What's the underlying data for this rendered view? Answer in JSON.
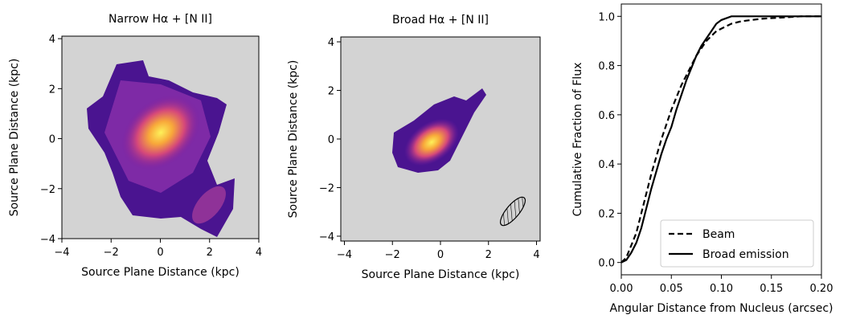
{
  "chart_data": [
    {
      "type": "image",
      "title": "Narrow Hα + [N II]",
      "xlabel": "Source Plane Distance (kpc)",
      "ylabel": "Source Plane Distance (kpc)",
      "xlim": [
        -4,
        4
      ],
      "ylim": [
        -4,
        4.1
      ],
      "xticks": [
        {
          "value": -4,
          "label": "−4"
        },
        {
          "value": -2,
          "label": "−2"
        },
        0,
        2,
        4
      ],
      "yticks": [
        {
          "value": -4,
          "label": "−4"
        },
        {
          "value": -2,
          "label": "−2"
        },
        0,
        2,
        4
      ]
    },
    {
      "type": "image",
      "title": "Broad Hα + [N II]",
      "xlabel": "Source Plane Distance (kpc)",
      "ylabel": "Source Plane Distance (kpc)",
      "xlim": [
        -4.15,
        4.15
      ],
      "ylim": [
        -4.2,
        4.2
      ],
      "xticks": [
        {
          "value": -4,
          "label": "−4"
        },
        {
          "value": -2,
          "label": "−2"
        },
        0,
        2,
        4
      ],
      "yticks": [
        {
          "value": -4,
          "label": "−4"
        },
        {
          "value": -2,
          "label": "−2"
        },
        0,
        2,
        4
      ]
    },
    {
      "type": "line",
      "xlabel": "Angular Distance from Nucleus (arcsec)",
      "ylabel": "Cumulative Fraction of Flux",
      "xlim": [
        0,
        0.2
      ],
      "ylim": [
        -0.05,
        1.05
      ],
      "xticks": [
        {
          "value": 0,
          "label": "0.00"
        },
        {
          "value": 0.05,
          "label": "0.05"
        },
        {
          "value": 0.1,
          "label": "0.10"
        },
        {
          "value": 0.15,
          "label": "0.15"
        },
        {
          "value": 0.2,
          "label": "0.20"
        }
      ],
      "yticks": [
        {
          "value": 0,
          "label": "0.0"
        },
        {
          "value": 0.2,
          "label": "0.2"
        },
        {
          "value": 0.4,
          "label": "0.4"
        },
        {
          "value": 0.6,
          "label": "0.6"
        },
        {
          "value": 0.8,
          "label": "0.8"
        },
        {
          "value": 1,
          "label": "1.0"
        }
      ],
      "legend": "lower right",
      "x": [
        0,
        0.005,
        0.01,
        0.015,
        0.02,
        0.025,
        0.03,
        0.035,
        0.04,
        0.045,
        0.05,
        0.055,
        0.06,
        0.065,
        0.07,
        0.075,
        0.08,
        0.085,
        0.09,
        0.095,
        0.1,
        0.11,
        0.12,
        0.14,
        0.16,
        0.18,
        0.2
      ],
      "series": [
        {
          "name": "Beam",
          "color": "#000000",
          "linestyle": "dashed",
          "values": [
            0,
            0.02,
            0.07,
            0.12,
            0.2,
            0.28,
            0.36,
            0.43,
            0.5,
            0.56,
            0.62,
            0.67,
            0.72,
            0.76,
            0.8,
            0.84,
            0.87,
            0.9,
            0.92,
            0.94,
            0.95,
            0.97,
            0.98,
            0.99,
            0.995,
            1,
            1
          ]
        },
        {
          "name": "Broad emission",
          "color": "#000000",
          "linestyle": "solid",
          "values": [
            0,
            0.01,
            0.04,
            0.08,
            0.14,
            0.22,
            0.3,
            0.37,
            0.44,
            0.5,
            0.55,
            0.62,
            0.68,
            0.74,
            0.79,
            0.84,
            0.88,
            0.91,
            0.94,
            0.97,
            0.985,
            1,
            1,
            1,
            1,
            1,
            1
          ]
        }
      ]
    }
  ]
}
